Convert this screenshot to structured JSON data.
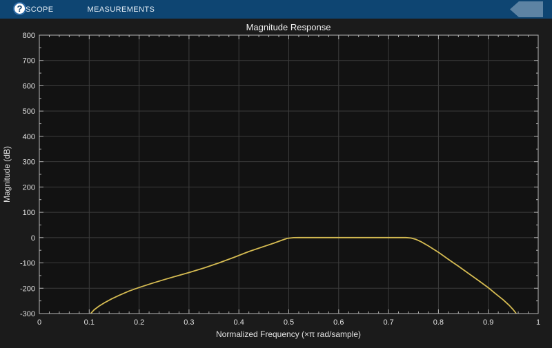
{
  "toolbar": {
    "tabs": [
      {
        "label": "SCOPE"
      },
      {
        "label": "MEASUREMENTS"
      }
    ],
    "help_label": "?"
  },
  "colors": {
    "toolbar_bg": "#0e4572",
    "figure_bg": "#1b1b1b",
    "axes_bg": "#121212",
    "grid": "#3d3d3d",
    "axis_box": "#b5b5b5",
    "tick_text": "#e3e3e3",
    "title_text": "#f0f0f0",
    "line": "#d6bc52",
    "help_shape": "#5d83a3"
  },
  "chart_data": {
    "type": "line",
    "title": "Magnitude Response",
    "xlabel": "Normalized Frequency (×π rad/sample)",
    "ylabel": "Magnitude (dB)",
    "xlim": [
      0,
      1
    ],
    "ylim": [
      -300,
      800
    ],
    "x_ticks": [
      0,
      0.1,
      0.2,
      0.3,
      0.4,
      0.5,
      0.6,
      0.7,
      0.8,
      0.9,
      1
    ],
    "x_tick_labels": [
      "0",
      "0.1",
      "0.2",
      "0.3",
      "0.4",
      "0.5",
      "0.6",
      "0.7",
      "0.8",
      "0.9",
      "1"
    ],
    "y_ticks": [
      -300,
      -200,
      -100,
      0,
      100,
      200,
      300,
      400,
      500,
      600,
      700,
      800
    ],
    "y_tick_labels": [
      "-300",
      "-200",
      "-100",
      "0",
      "100",
      "200",
      "300",
      "400",
      "500",
      "600",
      "700",
      "800"
    ],
    "x_minor_step": 0.02,
    "y_minor_step": 50,
    "grid": true,
    "legend": "none",
    "series": [
      {
        "name": "magnitude-response",
        "color": "#d6bc52",
        "points": [
          [
            0.103,
            -300
          ],
          [
            0.11,
            -285
          ],
          [
            0.12,
            -270
          ],
          [
            0.13,
            -258
          ],
          [
            0.145,
            -242
          ],
          [
            0.16,
            -228
          ],
          [
            0.18,
            -211
          ],
          [
            0.2,
            -197
          ],
          [
            0.225,
            -181
          ],
          [
            0.25,
            -166
          ],
          [
            0.275,
            -152
          ],
          [
            0.3,
            -138
          ],
          [
            0.33,
            -120
          ],
          [
            0.36,
            -100
          ],
          [
            0.39,
            -78
          ],
          [
            0.42,
            -55
          ],
          [
            0.45,
            -35
          ],
          [
            0.47,
            -22
          ],
          [
            0.485,
            -11
          ],
          [
            0.497,
            -3
          ],
          [
            0.51,
            -0.3
          ],
          [
            0.52,
            0
          ],
          [
            0.735,
            0
          ],
          [
            0.745,
            -1.5
          ],
          [
            0.755,
            -7
          ],
          [
            0.765,
            -16
          ],
          [
            0.78,
            -33
          ],
          [
            0.8,
            -58
          ],
          [
            0.82,
            -86
          ],
          [
            0.84,
            -113
          ],
          [
            0.86,
            -141
          ],
          [
            0.88,
            -169
          ],
          [
            0.9,
            -198
          ],
          [
            0.915,
            -222
          ],
          [
            0.93,
            -246
          ],
          [
            0.942,
            -268
          ],
          [
            0.95,
            -285
          ],
          [
            0.956,
            -300
          ]
        ]
      }
    ]
  }
}
